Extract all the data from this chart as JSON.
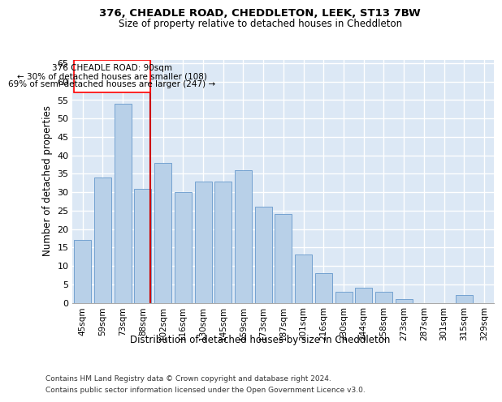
{
  "title1": "376, CHEADLE ROAD, CHEDDLETON, LEEK, ST13 7BW",
  "title2": "Size of property relative to detached houses in Cheddleton",
  "xlabel": "Distribution of detached houses by size in Cheddleton",
  "ylabel": "Number of detached properties",
  "footnote1": "Contains HM Land Registry data © Crown copyright and database right 2024.",
  "footnote2": "Contains public sector information licensed under the Open Government Licence v3.0.",
  "bar_labels": [
    "45sqm",
    "59sqm",
    "73sqm",
    "88sqm",
    "102sqm",
    "116sqm",
    "130sqm",
    "145sqm",
    "159sqm",
    "173sqm",
    "187sqm",
    "201sqm",
    "216sqm",
    "230sqm",
    "244sqm",
    "258sqm",
    "273sqm",
    "287sqm",
    "301sqm",
    "315sqm",
    "329sqm"
  ],
  "bar_values": [
    17,
    34,
    54,
    31,
    38,
    30,
    33,
    33,
    36,
    26,
    24,
    13,
    8,
    3,
    4,
    3,
    1,
    0,
    0,
    2,
    0
  ],
  "bar_color": "#b8d0e8",
  "bar_edge_color": "#6699cc",
  "highlight_index": 3,
  "highlight_color": "#cc0000",
  "annotation_title": "376 CHEADLE ROAD: 90sqm",
  "annotation_line1": "← 30% of detached houses are smaller (108)",
  "annotation_line2": "69% of semi-detached houses are larger (247) →",
  "ylim": [
    0,
    66
  ],
  "yticks": [
    0,
    5,
    10,
    15,
    20,
    25,
    30,
    35,
    40,
    45,
    50,
    55,
    60,
    65
  ],
  "bg_color": "#dce8f5",
  "fig_bg": "#ffffff"
}
